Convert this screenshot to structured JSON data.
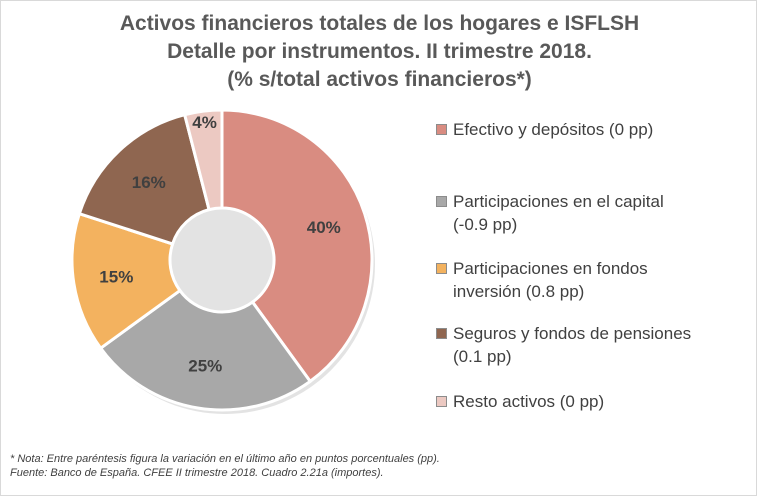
{
  "chart_data": {
    "type": "pie",
    "title": "Activos financieros totales de los hogares e ISFLSH",
    "subtitle": "Detalle por instrumentos. II trimestre 2018.",
    "subtitle2": "(% s/total activos financieros*)",
    "categories": [
      "Efectivo y depósitos",
      "Participaciones en el capital",
      "Participaciones en fondos inversión",
      "Seguros y fondos de pensiones",
      "Resto activos"
    ],
    "values": [
      40,
      25,
      15,
      16,
      4
    ],
    "data_labels": [
      "40%",
      "25%",
      "15%",
      "16%",
      "4%"
    ],
    "colors": [
      "#d98c81",
      "#a8a8a8",
      "#f3b25f",
      "#8f6650",
      "#ecc9c2"
    ],
    "legend_lines": [
      [
        "Efectivo y depósitos  (0 pp)"
      ],
      [
        "Participaciones en el capital",
        "(-0.9 pp)"
      ],
      [
        "Participaciones en fondos",
        "inversión  (0.8 pp)"
      ],
      [
        "Seguros y fondos de pensiones",
        "(0.1 pp)"
      ],
      [
        "Resto activos  (0 pp)"
      ]
    ],
    "legend_position": "right"
  },
  "footnote": {
    "note": "*  Nota: Entre paréntesis figura la variación en el último año en puntos porcentuales (pp).",
    "source": "Fuente: Banco de España. CFEE II trimestre 2018. Cuadro 2.21a (importes)."
  }
}
